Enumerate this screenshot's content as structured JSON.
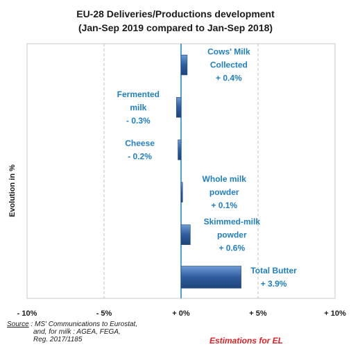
{
  "chart_data": {
    "type": "bar",
    "orientation": "horizontal",
    "title_line1": "EU-28 Deliveries/Productions development",
    "title_line2": "(Jan-Sep 2019 compared to Jan-Sep 2018)",
    "ylabel": "Evolution in %",
    "xlim": [
      -10,
      10
    ],
    "xticks": [
      -10,
      -5,
      0,
      5,
      10
    ],
    "xtick_labels": [
      "- 10%",
      "- 5%",
      "+ 0%",
      "+ 5%",
      "+ 10%"
    ],
    "grid": "vertical dashed",
    "bar_color": "#2f5d9e",
    "label_color": "#1f7fc1",
    "categories": [
      {
        "label_lines": [
          "Cows' Milk",
          "Collected",
          "+ 0.4%"
        ],
        "value": 0.4
      },
      {
        "label_lines": [
          "Fermented",
          "milk",
          "- 0.3%"
        ],
        "value": -0.3
      },
      {
        "label_lines": [
          "Cheese",
          "- 0.2%"
        ],
        "value": -0.2
      },
      {
        "label_lines": [
          "Whole milk",
          "powder",
          "+ 0.1%"
        ],
        "value": 0.1
      },
      {
        "label_lines": [
          "Skimmed-milk",
          "powder",
          "+ 0.6%"
        ],
        "value": 0.6
      },
      {
        "label_lines": [
          "Total Butter",
          "+ 3.9%"
        ],
        "value": 3.9
      }
    ]
  },
  "footer": {
    "source_prefix": "Source",
    "source_line1": " : MS' Communications to Eurostat,",
    "source_line2": "and, for milk : AGEA, FEGA,",
    "source_line3": "Reg. 2017/1185",
    "note": "Estimations for EL"
  }
}
